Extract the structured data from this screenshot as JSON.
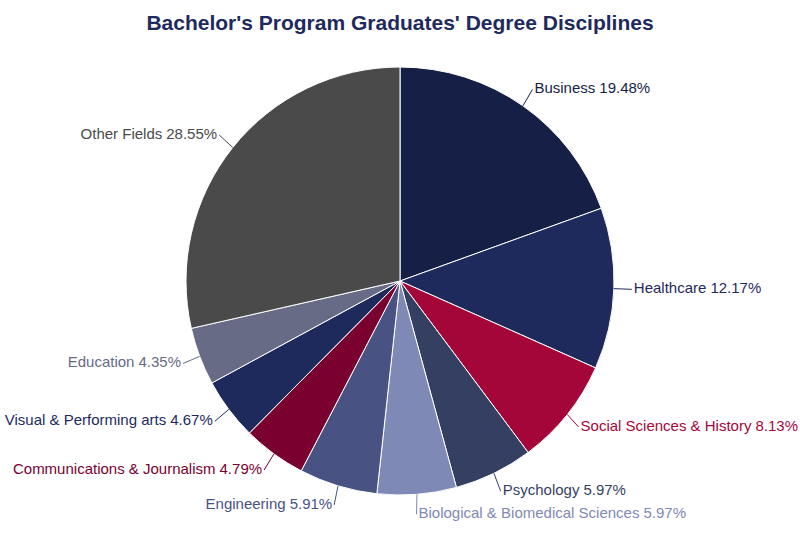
{
  "chart_data": {
    "type": "pie",
    "title": "Bachelor's Program Graduates' Degree Disciplines",
    "categories": [
      "Business",
      "Healthcare",
      "Social Sciences & History",
      "Psychology",
      "Biological & Biomedical Sciences",
      "Engineering",
      "Communications & Journalism",
      "Visual & Performing arts",
      "Education",
      "Other Fields"
    ],
    "values": [
      19.48,
      12.17,
      8.13,
      5.97,
      5.97,
      5.91,
      4.79,
      4.67,
      4.35,
      28.55
    ],
    "value_labels": [
      "19.48%",
      "12.17%",
      "8.13%",
      "5.97%",
      "5.97%",
      "5.91%",
      "4.79%",
      "4.67%",
      "4.35%",
      "28.55%"
    ],
    "colors": [
      "#161f45",
      "#1f2a5c",
      "#a5063a",
      "#353f62",
      "#7f89b5",
      "#485283",
      "#7a0030",
      "#1d2a5b",
      "#676b85",
      "#4a4a4a"
    ],
    "data_labels": true
  }
}
